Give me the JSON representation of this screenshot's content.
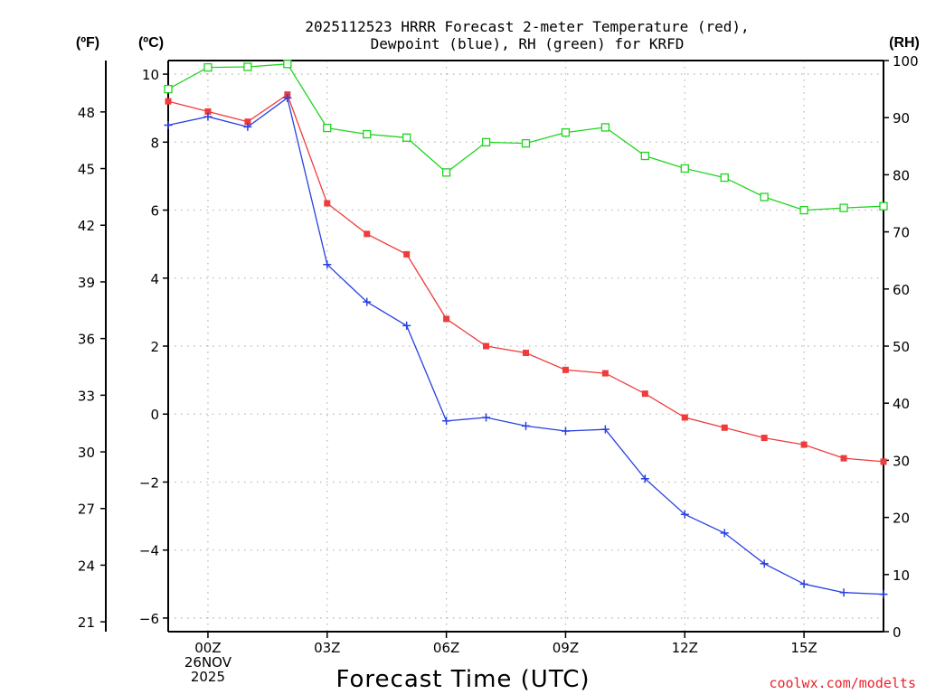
{
  "chart_data": {
    "type": "line",
    "title_lines": [
      "2025112523 HRRR Forecast 2-meter Temperature (red),",
      "Dewpoint (blue), RH (green) for KRFD"
    ],
    "units": {
      "fahrenheit": "(ºF)",
      "celsius": "(ºC)",
      "rh": "(RH)"
    },
    "xlabel": "Forecast Time (UTC)",
    "credit": "coolwx.com/modelts",
    "x_hours": [
      -1,
      0,
      1,
      2,
      3,
      4,
      5,
      6,
      7,
      8,
      9,
      10,
      11,
      12,
      13,
      14,
      15,
      16,
      17
    ],
    "xlim": [
      -1,
      17
    ],
    "x_ticks": [
      {
        "hour": 0,
        "lines": [
          "00Z",
          "26NOV",
          "2025"
        ]
      },
      {
        "hour": 3,
        "lines": [
          "03Z"
        ]
      },
      {
        "hour": 6,
        "lines": [
          "06Z"
        ]
      },
      {
        "hour": 9,
        "lines": [
          "09Z"
        ]
      },
      {
        "hour": 12,
        "lines": [
          "12Z"
        ]
      },
      {
        "hour": 15,
        "lines": [
          "15Z"
        ]
      }
    ],
    "y_celsius": {
      "range": [
        -6.4,
        10.4
      ],
      "ticks": [
        "10",
        "8",
        "6",
        "4",
        "2",
        "0",
        "−2",
        "−4",
        "−6"
      ]
    },
    "y_fahrenheit": {
      "range": [
        20.48,
        50.72
      ],
      "ticks": [
        "48",
        "45",
        "42",
        "39",
        "36",
        "33",
        "30",
        "27",
        "24",
        "21"
      ]
    },
    "y_rh": {
      "range": [
        0,
        100
      ],
      "ticks": [
        "100",
        "90",
        "80",
        "70",
        "60",
        "50",
        "40",
        "30",
        "20",
        "10",
        "0"
      ]
    },
    "series": [
      {
        "name": "Temperature",
        "unit": "°C",
        "color": "#ef3b3b",
        "marker": "filled-square",
        "values": [
          9.2,
          8.9,
          8.6,
          9.4,
          6.2,
          5.3,
          4.7,
          2.8,
          2.0,
          1.8,
          1.3,
          1.2,
          0.6,
          -0.1,
          -0.4,
          -0.7,
          -0.9,
          -1.3,
          -1.4
        ]
      },
      {
        "name": "Dewpoint",
        "unit": "°C",
        "color": "#2840e0",
        "marker": "plus",
        "values": [
          8.5,
          8.75,
          8.45,
          9.3,
          4.4,
          3.3,
          2.6,
          -0.2,
          -0.1,
          -0.35,
          -0.5,
          -0.45,
          -1.9,
          -2.95,
          -3.5,
          -4.4,
          -5.0,
          -5.25,
          -5.3
        ]
      },
      {
        "name": "RH",
        "unit": "%",
        "color": "#1ed41e",
        "marker": "open-square",
        "values": [
          95,
          98.8,
          98.9,
          99.4,
          88.2,
          87.1,
          86.5,
          80.4,
          85.7,
          85.5,
          87.4,
          88.3,
          83.3,
          81.1,
          79.5,
          76.1,
          73.8,
          74.2,
          74.5
        ]
      }
    ]
  }
}
